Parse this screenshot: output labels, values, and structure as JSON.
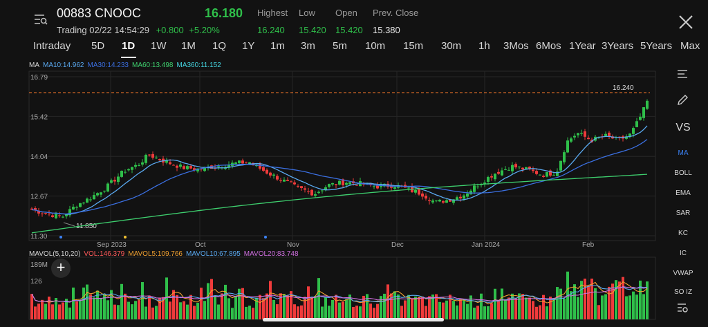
{
  "header": {
    "code_name": "00883 CNOOC",
    "price": "16.180",
    "status": "Trading 02/22 14:54:29",
    "change": "+0.800",
    "change_pct": "+5.20%",
    "stats": [
      {
        "label": "Highest",
        "value": "16.240",
        "color": "#2fbf4a"
      },
      {
        "label": "Low",
        "value": "15.420",
        "color": "#2fbf4a"
      },
      {
        "label": "Open",
        "value": "15.420",
        "color": "#2fbf4a"
      },
      {
        "label": "Prev. Close",
        "value": "15.380",
        "color": "#e8e8e8"
      }
    ]
  },
  "tabs": [
    "Intraday",
    "5D",
    "1D",
    "1W",
    "1M",
    "1Q",
    "1Y",
    "1m",
    "3m",
    "5m",
    "10m",
    "15m",
    "30m",
    "1h",
    "3Mos",
    "6Mos",
    "1Year",
    "3Years",
    "5Years",
    "Max"
  ],
  "active_tab": "1D",
  "ma_legend": [
    {
      "text": "MA",
      "color": "#d8d8d8"
    },
    {
      "text": "MA10:14.962",
      "color": "#5aa9f0"
    },
    {
      "text": "MA30:14.233",
      "color": "#3b6fe0"
    },
    {
      "text": "MA60:13.498",
      "color": "#3ecf6e"
    },
    {
      "text": "MA360:11.152",
      "color": "#45d4e0"
    }
  ],
  "vol_legend": [
    {
      "text": "MAVOL(5,10,20)",
      "color": "#d8d8d8"
    },
    {
      "text": "VOL:146.379",
      "color": "#ff5a5a"
    },
    {
      "text": "MAVOL5:109.766",
      "color": "#f0a030"
    },
    {
      "text": "MAVOL10:67.895",
      "color": "#5aa9f0"
    },
    {
      "text": "MAVOL20:83.748",
      "color": "#d070e0"
    }
  ],
  "price_axis": [
    "16.79",
    "15.42",
    "14.04",
    "12.67",
    "11.30"
  ],
  "vol_axis": [
    "189M",
    "126"
  ],
  "x_labels": [
    "Sep 2023",
    "Oct",
    "Nov",
    "Dec",
    "Jan 2024",
    "Feb"
  ],
  "annotations": {
    "high": "16.240",
    "low": "11.850"
  },
  "side_indicators": [
    "VS",
    "MA",
    "BOLL",
    "EMA",
    "SAR",
    "KC",
    "IC",
    "VWAP",
    "SO IZ"
  ],
  "active_indicator": "MA",
  "colors": {
    "up": "#2fbf4a",
    "down": "#ef3b3b",
    "dashed": "#ff7a2a"
  },
  "add_label": "+"
}
